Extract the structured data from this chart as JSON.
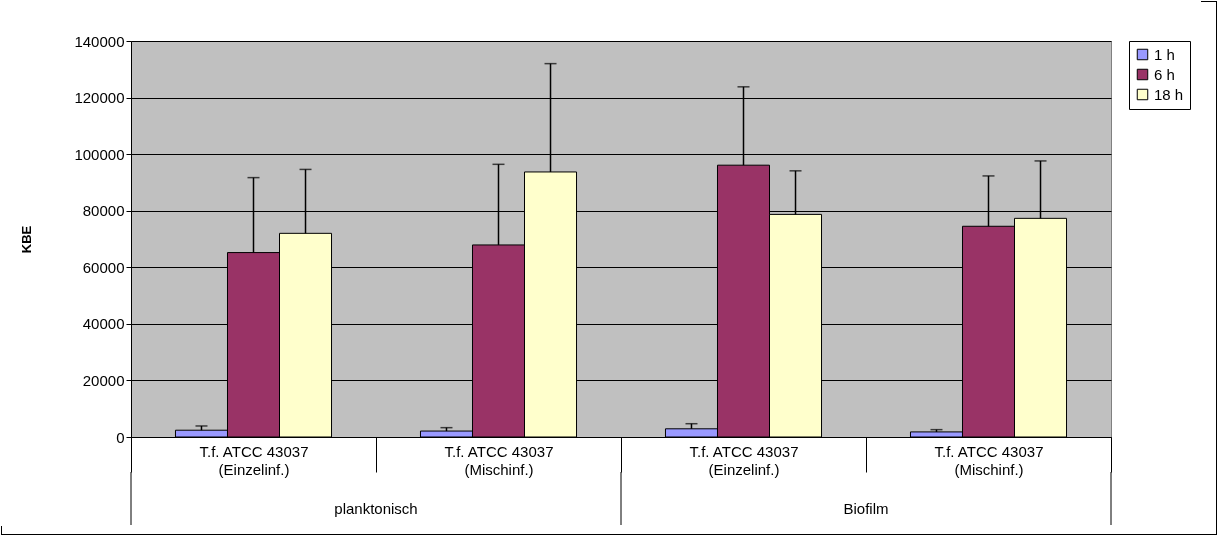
{
  "chart_data": {
    "type": "bar",
    "ylabel": "KBE",
    "categories": [
      "T.f. ATCC 43037\n(Einzelinf.)",
      "T.f. ATCC 43037\n(Mischinf.)",
      "T.f. ATCC 43037\n(Einzelinf.)",
      "T.f. ATCC 43037\n(Mischinf.)"
    ],
    "series": [
      {
        "name": "1 h",
        "color": "#9999ff",
        "values": [
          2400,
          2100,
          2900,
          1800
        ],
        "errors": [
          [
            2400,
            3900
          ],
          [
            2100,
            3300
          ],
          [
            2900,
            4700
          ],
          [
            1800,
            2600
          ]
        ]
      },
      {
        "name": "6 h",
        "color": "#993366",
        "values": [
          65200,
          67900,
          96100,
          74500
        ],
        "errors": [
          [
            65200,
            91700
          ],
          [
            67900,
            96400
          ],
          [
            96100,
            123800
          ],
          [
            74500,
            92300
          ]
        ]
      },
      {
        "name": "18 h",
        "color": "#ffffcc",
        "values": [
          72000,
          93700,
          78700,
          77300
        ],
        "errors": [
          [
            72000,
            94600
          ],
          [
            93700,
            132000
          ],
          [
            78700,
            94100
          ],
          [
            77300,
            97600
          ]
        ]
      }
    ],
    "annotations": [
      "planktonisch",
      "Biofilm"
    ],
    "ylim": [
      0,
      140000
    ],
    "yticks": [
      0,
      20000,
      40000,
      60000,
      80000,
      100000,
      120000,
      140000
    ],
    "grid": "y",
    "legend": "right"
  }
}
